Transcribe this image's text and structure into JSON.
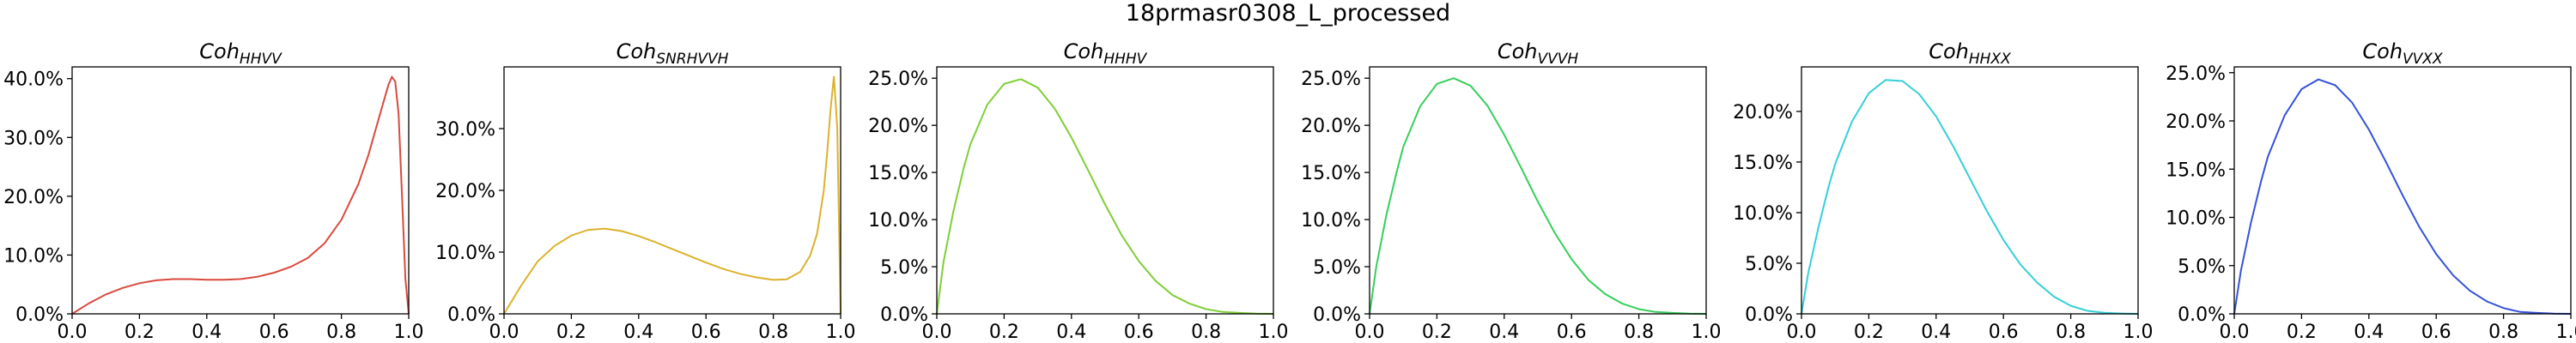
{
  "title": "18prmasr0308_L_processed",
  "chart_data": [
    {
      "type": "line",
      "title_main": "Coh",
      "title_sub": "HHVV",
      "color": "#d94a3e",
      "xlim": [
        0,
        1
      ],
      "ylim": [
        0,
        0.42
      ],
      "xticks": [
        "0.0",
        "0.2",
        "0.4",
        "0.6",
        "0.8",
        "1.0"
      ],
      "yticks": [
        "0.0%",
        "10.0%",
        "20.0%",
        "30.0%",
        "40.0%"
      ],
      "x": [
        0,
        0.05,
        0.1,
        0.15,
        0.2,
        0.25,
        0.3,
        0.35,
        0.4,
        0.45,
        0.5,
        0.55,
        0.6,
        0.65,
        0.7,
        0.75,
        0.8,
        0.85,
        0.88,
        0.9,
        0.92,
        0.94,
        0.95,
        0.96,
        0.97,
        0.98,
        0.99,
        1.0
      ],
      "y": [
        0,
        0.018,
        0.033,
        0.044,
        0.052,
        0.057,
        0.059,
        0.059,
        0.058,
        0.058,
        0.059,
        0.063,
        0.07,
        0.08,
        0.095,
        0.12,
        0.16,
        0.22,
        0.27,
        0.31,
        0.35,
        0.39,
        0.403,
        0.395,
        0.34,
        0.2,
        0.06,
        0
      ]
    },
    {
      "type": "line",
      "title_main": "Coh",
      "title_sub": "SNRHVVH",
      "color": "#dcb22c",
      "xlim": [
        0,
        1
      ],
      "ylim": [
        0,
        0.4
      ],
      "xticks": [
        "0.0",
        "0.2",
        "0.4",
        "0.6",
        "0.8",
        "1.0"
      ],
      "yticks": [
        "0.0%",
        "10.0%",
        "20.0%",
        "30.0%"
      ],
      "x": [
        0,
        0.05,
        0.1,
        0.15,
        0.2,
        0.25,
        0.3,
        0.35,
        0.4,
        0.45,
        0.5,
        0.55,
        0.6,
        0.65,
        0.7,
        0.75,
        0.8,
        0.84,
        0.88,
        0.91,
        0.93,
        0.95,
        0.96,
        0.97,
        0.98,
        0.99,
        1.0
      ],
      "y": [
        0,
        0.045,
        0.085,
        0.11,
        0.127,
        0.136,
        0.138,
        0.134,
        0.126,
        0.116,
        0.105,
        0.094,
        0.083,
        0.073,
        0.065,
        0.059,
        0.055,
        0.056,
        0.068,
        0.095,
        0.13,
        0.2,
        0.26,
        0.33,
        0.385,
        0.3,
        0
      ]
    },
    {
      "type": "line",
      "title_main": "Coh",
      "title_sub": "HHHV",
      "color": "#7fcf35",
      "xlim": [
        0,
        1
      ],
      "ylim": [
        0,
        0.262
      ],
      "xticks": [
        "0.0",
        "0.2",
        "0.4",
        "0.6",
        "0.8",
        "1.0"
      ],
      "yticks": [
        "0.0%",
        "5.0%",
        "10.0%",
        "15.0%",
        "20.0%",
        "25.0%"
      ],
      "x": [
        0,
        0.02,
        0.05,
        0.08,
        0.1,
        0.15,
        0.2,
        0.25,
        0.3,
        0.35,
        0.4,
        0.45,
        0.5,
        0.55,
        0.6,
        0.65,
        0.7,
        0.75,
        0.8,
        0.85,
        0.9,
        0.95,
        1.0
      ],
      "y": [
        0,
        0.055,
        0.11,
        0.155,
        0.18,
        0.222,
        0.244,
        0.249,
        0.24,
        0.218,
        0.187,
        0.152,
        0.116,
        0.083,
        0.056,
        0.035,
        0.02,
        0.011,
        0.005,
        0.002,
        0.001,
        0.0003,
        0
      ]
    },
    {
      "type": "line",
      "title_main": "Coh",
      "title_sub": "VVVH",
      "color": "#35cf5b",
      "xlim": [
        0,
        1
      ],
      "ylim": [
        0,
        0.262
      ],
      "xticks": [
        "0.0",
        "0.2",
        "0.4",
        "0.6",
        "0.8",
        "1.0"
      ],
      "yticks": [
        "0.0%",
        "5.0%",
        "10.0%",
        "15.0%",
        "20.0%",
        "25.0%"
      ],
      "x": [
        0,
        0.02,
        0.05,
        0.08,
        0.1,
        0.15,
        0.2,
        0.25,
        0.3,
        0.35,
        0.4,
        0.45,
        0.5,
        0.55,
        0.6,
        0.65,
        0.7,
        0.75,
        0.8,
        0.85,
        0.9,
        0.95,
        1.0
      ],
      "y": [
        0,
        0.05,
        0.105,
        0.15,
        0.177,
        0.22,
        0.244,
        0.25,
        0.242,
        0.221,
        0.19,
        0.155,
        0.119,
        0.086,
        0.058,
        0.036,
        0.021,
        0.011,
        0.005,
        0.002,
        0.001,
        0.0003,
        0
      ]
    },
    {
      "type": "line",
      "title_main": "Coh",
      "title_sub": "HHXX",
      "color": "#35cfd9",
      "xlim": [
        0,
        1
      ],
      "ylim": [
        0,
        0.244
      ],
      "xticks": [
        "0.0",
        "0.2",
        "0.4",
        "0.6",
        "0.8",
        "1.0"
      ],
      "yticks": [
        "0.0%",
        "5.0%",
        "10.0%",
        "15.0%",
        "20.0%"
      ],
      "x": [
        0,
        0.02,
        0.05,
        0.08,
        0.1,
        0.15,
        0.2,
        0.25,
        0.3,
        0.35,
        0.4,
        0.45,
        0.5,
        0.55,
        0.6,
        0.65,
        0.7,
        0.75,
        0.8,
        0.85,
        0.9,
        0.95,
        1.0
      ],
      "y": [
        0,
        0.04,
        0.085,
        0.125,
        0.148,
        0.19,
        0.218,
        0.231,
        0.23,
        0.217,
        0.195,
        0.166,
        0.134,
        0.102,
        0.073,
        0.049,
        0.031,
        0.017,
        0.008,
        0.003,
        0.001,
        0.0003,
        0
      ]
    },
    {
      "type": "line",
      "title_main": "Coh",
      "title_sub": "VVXX",
      "color": "#3552d9",
      "xlim": [
        0,
        1
      ],
      "ylim": [
        0,
        0.256
      ],
      "xticks": [
        "0.0",
        "0.2",
        "0.4",
        "0.6",
        "0.8",
        "1.0"
      ],
      "yticks": [
        "0.0%",
        "5.0%",
        "10.0%",
        "15.0%",
        "20.0%",
        "25.0%"
      ],
      "x": [
        0,
        0.02,
        0.05,
        0.08,
        0.1,
        0.15,
        0.2,
        0.25,
        0.3,
        0.35,
        0.4,
        0.45,
        0.5,
        0.55,
        0.6,
        0.65,
        0.7,
        0.75,
        0.8,
        0.85,
        0.9,
        0.95,
        1.0
      ],
      "y": [
        0,
        0.045,
        0.095,
        0.138,
        0.163,
        0.206,
        0.233,
        0.243,
        0.237,
        0.219,
        0.191,
        0.158,
        0.123,
        0.09,
        0.062,
        0.04,
        0.024,
        0.013,
        0.006,
        0.002,
        0.001,
        0.0003,
        0
      ]
    }
  ]
}
